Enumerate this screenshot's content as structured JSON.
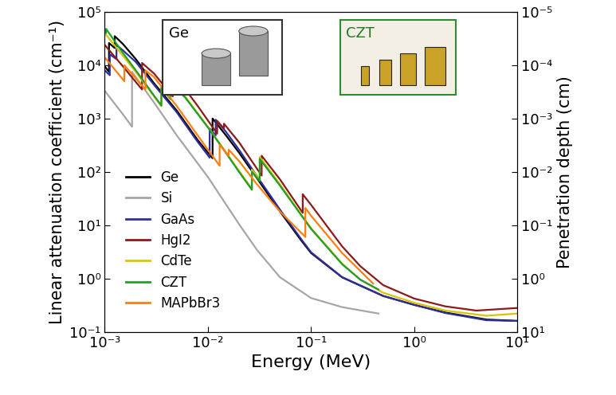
{
  "chart_data": {
    "type": "line",
    "xlabel": "Energy (MeV)",
    "ylabel": "Linear attenuation coefficient (cm⁻¹)",
    "y2label": "Penetration depth (cm)",
    "log": true,
    "legend": "lower left",
    "xlim": [
      0.001,
      10
    ],
    "ylim": [
      0.1,
      100000
    ],
    "y2lim": [
      10,
      1e-05
    ],
    "xticks": [
      {
        "value": 0.001,
        "label": "10⁻³"
      },
      {
        "value": 0.01,
        "label": "10⁻²"
      },
      {
        "value": 0.1,
        "label": "10⁻¹"
      },
      {
        "value": 1,
        "label": "10⁰"
      },
      {
        "value": 10,
        "label": "10¹"
      }
    ],
    "yticks": [
      {
        "value": 0.1,
        "label": "10⁻¹"
      },
      {
        "value": 1,
        "label": "10⁰"
      },
      {
        "value": 10,
        "label": "10¹"
      },
      {
        "value": 100,
        "label": "10²"
      },
      {
        "value": 1000,
        "label": "10³"
      },
      {
        "value": 10000,
        "label": "10⁴"
      },
      {
        "value": 100000,
        "label": "10⁵"
      }
    ],
    "y2ticks": [
      {
        "value": 1e-05,
        "label": "10⁻⁵"
      },
      {
        "value": 0.0001,
        "label": "10⁻⁴"
      },
      {
        "value": 0.001,
        "label": "10⁻³"
      },
      {
        "value": 0.01,
        "label": "10⁻²"
      },
      {
        "value": 0.1,
        "label": "10⁻¹"
      },
      {
        "value": 1,
        "label": "10⁰"
      },
      {
        "value": 10,
        "label": "10¹"
      }
    ],
    "annotations": [
      {
        "text": "Ge"
      },
      {
        "text": "CZT"
      }
    ],
    "series": [
      {
        "name": "Ge",
        "color": "#000000",
        "x": [
          0.001,
          0.0011,
          0.0011,
          0.00125,
          0.00125,
          0.0015,
          0.002,
          0.003,
          0.005,
          0.008,
          0.0111,
          0.0111,
          0.015,
          0.02,
          0.03,
          0.05,
          0.08,
          0.1,
          0.2,
          0.5,
          1,
          2,
          5,
          10
        ],
        "values": [
          9500,
          7500,
          26000,
          21000,
          35000,
          25000,
          13000,
          4600,
          1400,
          390,
          180,
          1000,
          480,
          230,
          75,
          18,
          5.2,
          3,
          1.05,
          0.47,
          0.32,
          0.23,
          0.17,
          0.16
        ]
      },
      {
        "name": "Si",
        "color": "#a6a6a6",
        "x": [
          0.001,
          0.0015,
          0.00184,
          0.00184,
          0.003,
          0.005,
          0.01,
          0.02,
          0.03,
          0.05,
          0.1,
          0.2,
          0.45
        ],
        "values": [
          3300,
          1200,
          700,
          7500,
          2000,
          480,
          80,
          10.5,
          3.4,
          1.05,
          0.43,
          0.29,
          0.22
        ]
      },
      {
        "name": "GaAs",
        "color": "#2e2e9c",
        "x": [
          0.001,
          0.00112,
          0.00112,
          0.0013,
          0.0013,
          0.0015,
          0.002,
          0.003,
          0.005,
          0.008,
          0.0104,
          0.0104,
          0.0119,
          0.0119,
          0.015,
          0.02,
          0.03,
          0.05,
          0.08,
          0.1,
          0.2,
          0.5,
          1,
          2,
          5,
          10
        ],
        "values": [
          8000,
          6500,
          16000,
          13000,
          24000,
          19000,
          11500,
          4300,
          1300,
          360,
          185,
          650,
          480,
          950,
          560,
          260,
          82,
          19.5,
          5.5,
          3.1,
          1.06,
          0.47,
          0.32,
          0.225,
          0.165,
          0.16
        ]
      },
      {
        "name": "HgI2",
        "color": "#8b1a1a",
        "x": [
          0.001,
          0.0015,
          0.0023,
          0.0023,
          0.003,
          0.00456,
          0.00456,
          0.0052,
          0.0052,
          0.008,
          0.0123,
          0.0123,
          0.0143,
          0.0143,
          0.02,
          0.0332,
          0.0332,
          0.05,
          0.083,
          0.083,
          0.1,
          0.2,
          0.3,
          0.5,
          1,
          2,
          4,
          10
        ],
        "values": [
          24000,
          9500,
          3500,
          11000,
          7000,
          2600,
          5000,
          3800,
          5200,
          1700,
          520,
          900,
          650,
          800,
          360,
          85,
          200,
          72,
          17,
          38,
          24,
          4,
          1.7,
          0.75,
          0.42,
          0.3,
          0.25,
          0.28
        ]
      },
      {
        "name": "CdTe",
        "color": "#d9c400",
        "x": [
          0.001,
          0.0015,
          0.002,
          0.003,
          0.00354,
          0.00354,
          0.00434,
          0.00434,
          0.006,
          0.01,
          0.015,
          0.02,
          0.0267,
          0.0267,
          0.0318,
          0.0318,
          0.05,
          0.08,
          0.1,
          0.2,
          0.3,
          0.5,
          1,
          2,
          5,
          10
        ],
        "values": [
          40000,
          15000,
          7500,
          2600,
          1700,
          4000,
          2400,
          4600,
          2600,
          700,
          230,
          105,
          48,
          110,
          72,
          190,
          58,
          16,
          8.8,
          1.9,
          0.95,
          0.54,
          0.35,
          0.25,
          0.2,
          0.22
        ]
      },
      {
        "name": "CZT",
        "color": "#1f9e2c",
        "x": [
          0.001,
          0.00103,
          0.00103,
          0.0015,
          0.002,
          0.003,
          0.00354,
          0.00354,
          0.00434,
          0.00434,
          0.006,
          0.01,
          0.015,
          0.02,
          0.0267,
          0.0267,
          0.0318,
          0.0318,
          0.05,
          0.08,
          0.1,
          0.2,
          0.3,
          0.45
        ],
        "values": [
          46000,
          40000,
          48000,
          17000,
          8000,
          2700,
          1750,
          3800,
          2300,
          4400,
          2500,
          680,
          225,
          100,
          46,
          100,
          67,
          175,
          55,
          15.5,
          8.5,
          1.85,
          0.95,
          0.62
        ]
      },
      {
        "name": "MAPbBr3",
        "color": "#ff7f0e",
        "x": [
          0.001,
          0.00155,
          0.00155,
          0.00248,
          0.00248,
          0.003,
          0.005,
          0.01,
          0.013,
          0.013,
          0.0159,
          0.0159,
          0.02,
          0.03,
          0.05,
          0.088,
          0.088,
          0.1,
          0.2,
          0.4
        ],
        "values": [
          14000,
          5000,
          10000,
          3500,
          8000,
          6000,
          1700,
          260,
          130,
          320,
          200,
          260,
          160,
          58,
          18,
          6,
          21,
          15,
          3,
          0.8
        ]
      }
    ]
  }
}
